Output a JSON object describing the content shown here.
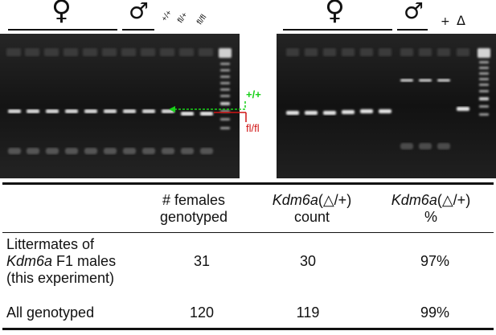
{
  "figure": {
    "left_gel": {
      "female_symbol": "♀",
      "male_symbol": "♂",
      "lane_labels": [
        "+/+",
        "fl/+",
        "fl/fl"
      ],
      "annotations": {
        "wt_band": "+/+",
        "fl_band": "fl/fl"
      }
    },
    "right_gel": {
      "female_symbol": "♀",
      "male_symbol": "♂",
      "lane_labels": [
        "+",
        "Δ"
      ]
    },
    "colors": {
      "wt_band_label": "#19d019",
      "fl_band_label": "#d01414",
      "gel_background": "#1a1a1a"
    }
  },
  "table": {
    "headers": {
      "col1_line1": "# females",
      "col1_line2": "genotyped",
      "col2_gene": "Kdm6a",
      "col2_genotype": "(△/+)",
      "col2_line2": "count",
      "col3_gene": "Kdm6a",
      "col3_genotype": "(△/+)",
      "col3_line2": "%"
    },
    "rows": [
      {
        "label_line1": "Littermates of",
        "label_line2_gene": "Kdm6a",
        "label_line2_rest": " F1 males",
        "label_line3": "(this experiment)",
        "females": "31",
        "count": "30",
        "percent": "97%"
      },
      {
        "label_line1": "All genotyped",
        "females": "120",
        "count": "119",
        "percent": "99%"
      }
    ]
  }
}
